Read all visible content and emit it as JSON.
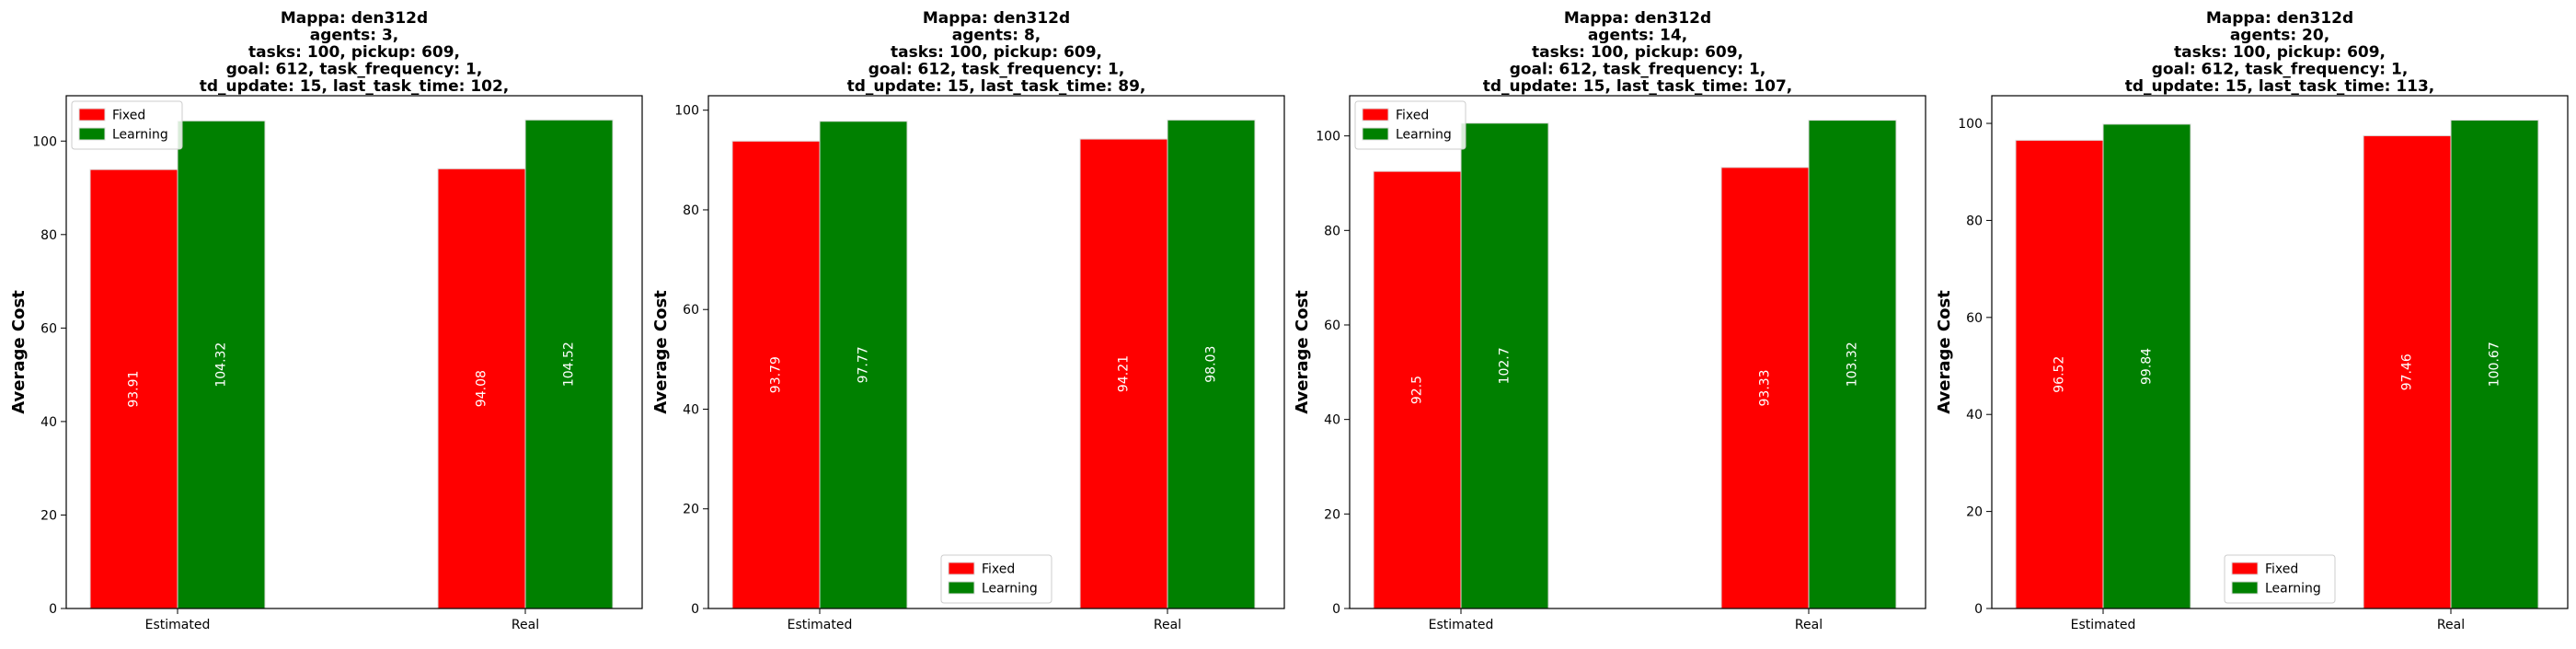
{
  "chart_data": [
    {
      "type": "bar",
      "title_lines": [
        "Mappa: den312d",
        "agents: 3,",
        "tasks: 100, pickup: 609,",
        "goal: 612, task_frequency: 1,",
        "td_update: 15, last_task_time: 102,"
      ],
      "ylabel": "Average Cost",
      "categories": [
        "Estimated",
        "Real"
      ],
      "series": [
        {
          "name": "Fixed",
          "color": "#ff0000",
          "values": [
            93.91,
            94.08
          ],
          "labels": [
            "93.91",
            "94.08"
          ]
        },
        {
          "name": "Learning",
          "color": "#008000",
          "values": [
            104.32,
            104.52
          ],
          "labels": [
            "104.32",
            "104.52"
          ]
        }
      ],
      "ylim": [
        0,
        109.7
      ],
      "yticks": [
        0,
        20,
        40,
        60,
        80,
        100
      ],
      "legend": "upper-left"
    },
    {
      "type": "bar",
      "title_lines": [
        "Mappa: den312d",
        "agents: 8,",
        "tasks: 100, pickup: 609,",
        "goal: 612, task_frequency: 1,",
        "td_update: 15, last_task_time: 89,"
      ],
      "ylabel": "Average Cost",
      "categories": [
        "Estimated",
        "Real"
      ],
      "series": [
        {
          "name": "Fixed",
          "color": "#ff0000",
          "values": [
            93.79,
            94.21
          ],
          "labels": [
            "93.79",
            "94.21"
          ]
        },
        {
          "name": "Learning",
          "color": "#008000",
          "values": [
            97.77,
            98.03
          ],
          "labels": [
            "97.77",
            "98.03"
          ]
        }
      ],
      "ylim": [
        0,
        102.9
      ],
      "yticks": [
        0,
        20,
        40,
        60,
        80,
        100
      ],
      "legend": "lower-center"
    },
    {
      "type": "bar",
      "title_lines": [
        "Mappa: den312d",
        "agents: 14,",
        "tasks: 100, pickup: 609,",
        "goal: 612, task_frequency: 1,",
        "td_update: 15, last_task_time: 107,"
      ],
      "ylabel": "Average Cost",
      "categories": [
        "Estimated",
        "Real"
      ],
      "series": [
        {
          "name": "Fixed",
          "color": "#ff0000",
          "values": [
            92.5,
            93.33
          ],
          "labels": [
            "92.5",
            "93.33"
          ]
        },
        {
          "name": "Learning",
          "color": "#008000",
          "values": [
            102.7,
            103.32
          ],
          "labels": [
            "102.7",
            "103.32"
          ]
        }
      ],
      "ylim": [
        0,
        108.5
      ],
      "yticks": [
        0,
        20,
        40,
        60,
        80,
        100
      ],
      "legend": "upper-left"
    },
    {
      "type": "bar",
      "title_lines": [
        "Mappa: den312d",
        "agents: 20,",
        "tasks: 100, pickup: 609,",
        "goal: 612, task_frequency: 1,",
        "td_update: 15, last_task_time: 113,"
      ],
      "ylabel": "Average Cost",
      "categories": [
        "Estimated",
        "Real"
      ],
      "series": [
        {
          "name": "Fixed",
          "color": "#ff0000",
          "values": [
            96.52,
            97.46
          ],
          "labels": [
            "96.52",
            "97.46"
          ]
        },
        {
          "name": "Learning",
          "color": "#008000",
          "values": [
            99.84,
            100.67
          ],
          "labels": [
            "99.84",
            "100.67"
          ]
        }
      ],
      "ylim": [
        0,
        105.7
      ],
      "yticks": [
        0,
        20,
        40,
        60,
        80,
        100
      ],
      "legend": "lower-center"
    }
  ]
}
